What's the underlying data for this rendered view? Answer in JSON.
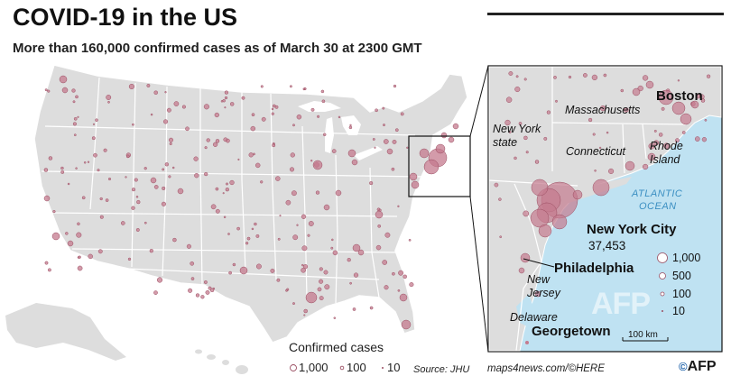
{
  "header": {
    "title": "COVID-19 in the US",
    "subtitle": "More than 160,000 confirmed cases as of March 30 at 2300 GMT"
  },
  "inset": {
    "labels": {
      "boston": "Boston",
      "massachusetts": "Massachusetts",
      "new_york_state_1": "New York",
      "new_york_state_2": "state",
      "connecticut": "Connecticut",
      "rhode_island_1": "Rhode",
      "rhode_island_2": "Island",
      "atlantic_1": "ATLANTIC",
      "atlantic_2": "OCEAN",
      "new_york_city": "New York City",
      "new_york_city_cases": "37,453",
      "philadelphia": "Philadelphia",
      "new_jersey_1": "New",
      "new_jersey_2": "Jersey",
      "delaware": "Delaware",
      "georgetown": "Georgetown",
      "scale": "100 km"
    },
    "legend": [
      "1,000",
      "500",
      "100",
      "10"
    ]
  },
  "legend": {
    "title": "Confirmed cases",
    "items": [
      "1,000",
      "100",
      "10"
    ]
  },
  "source": "Source: JHU",
  "credit": "maps4news.com/©HERE",
  "logo": "AFP",
  "colors": {
    "land": "#dddddd",
    "water": "#bfe2f2",
    "bubble_fill": "#c47a8e",
    "bubble_stroke": "#9b4f63"
  },
  "bubbles": [
    {
      "place": "New York City",
      "cases": 37453
    },
    {
      "place": "Boston",
      "cases": 1000
    },
    {
      "place": "Philadelphia",
      "cases": 500
    }
  ]
}
